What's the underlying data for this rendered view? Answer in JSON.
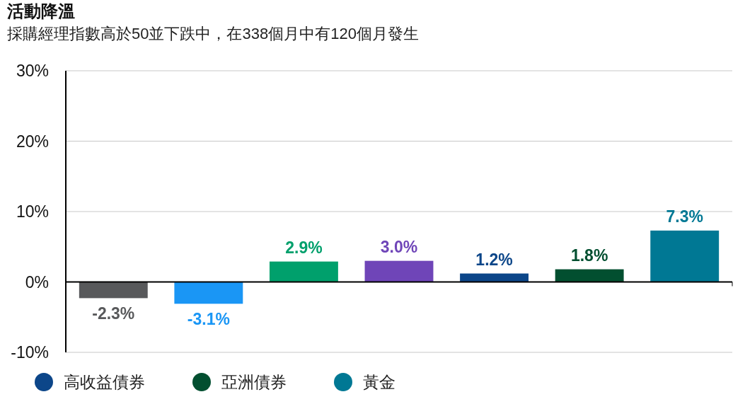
{
  "chart_data": {
    "type": "bar",
    "title": "活動降溫",
    "subtitle": "採購經理指數高於50並下跌中，在338個月中有120個月發生",
    "categories": [
      null,
      null,
      null,
      null,
      null,
      null,
      null
    ],
    "series": [
      {
        "color": "#58595b",
        "values": [
          -2.3,
          null,
          null,
          null,
          null,
          null,
          null
        ]
      },
      {
        "color": "#1a96f5",
        "values": [
          null,
          -3.1,
          null,
          null,
          null,
          null,
          null
        ]
      },
      {
        "color": "#00a06c",
        "values": [
          null,
          null,
          2.9,
          null,
          null,
          null,
          null
        ]
      },
      {
        "color": "#6f45b8",
        "values": [
          null,
          null,
          null,
          3.0,
          null,
          null,
          null
        ]
      },
      {
        "name": "高收益債券",
        "color": "#0c4689",
        "values": [
          null,
          null,
          null,
          null,
          1.2,
          null,
          null
        ]
      },
      {
        "name": "亞洲債券",
        "color": "#024f30",
        "values": [
          null,
          null,
          null,
          null,
          null,
          1.8,
          null
        ]
      },
      {
        "name": "黃金",
        "color": "#007894",
        "values": [
          null,
          null,
          null,
          null,
          null,
          null,
          7.3
        ]
      }
    ],
    "value_labels": [
      "-2.3%",
      "-3.1%",
      "2.9%",
      "3.0%",
      "1.2%",
      "1.8%",
      "7.3%"
    ],
    "ylim": [
      -10,
      30
    ],
    "yticks": [
      {
        "value": -10,
        "label": "-10%"
      },
      {
        "value": 0,
        "label": "0%"
      },
      {
        "value": 10,
        "label": "10%"
      },
      {
        "value": 20,
        "label": "20%"
      },
      {
        "value": 30,
        "label": "30%"
      }
    ],
    "grid": "y",
    "legend": "bottom"
  }
}
